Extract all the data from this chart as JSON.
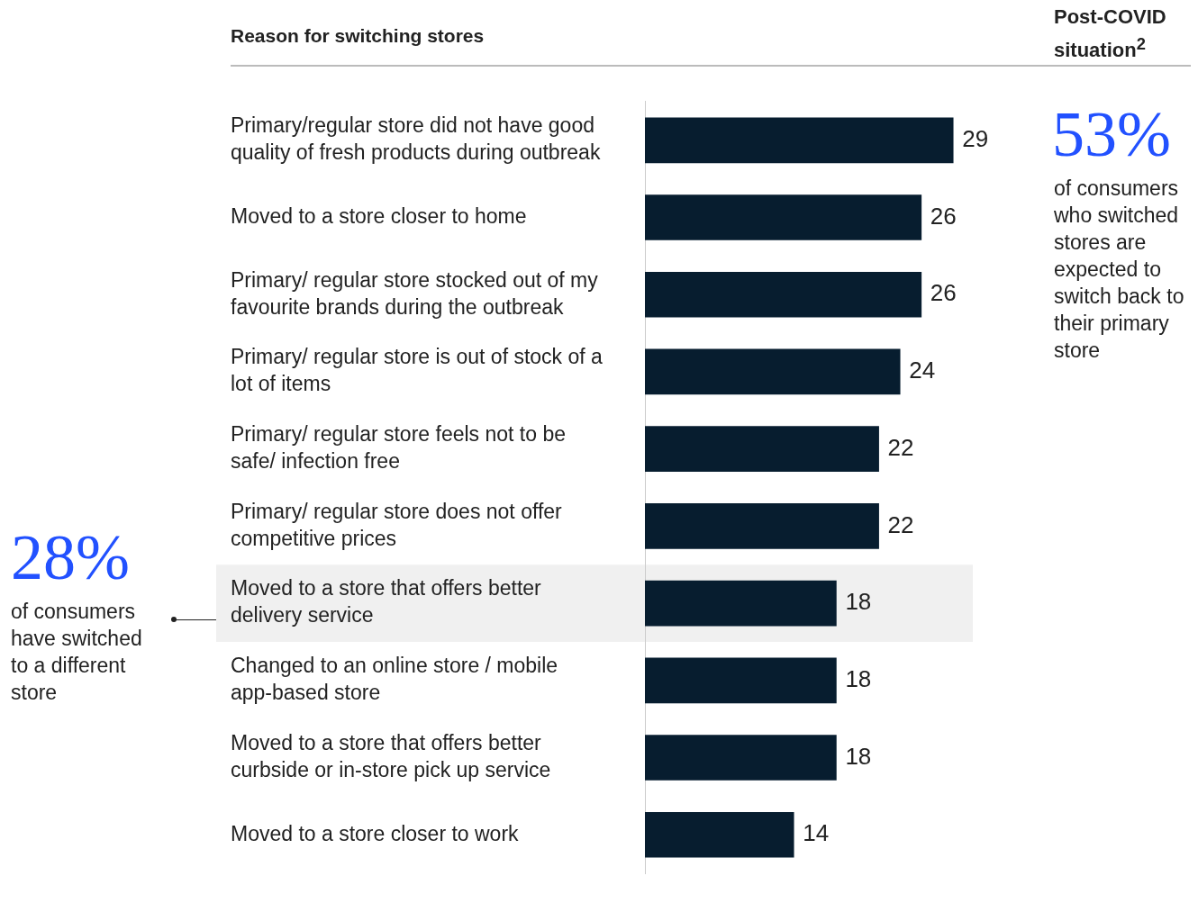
{
  "chart_data": {
    "type": "bar",
    "orientation": "horizontal",
    "title": "Reason for switching stores",
    "categories": [
      "Primary/regular store did not have good quality of fresh products during outbreak",
      "Moved to a store closer to home",
      "Primary/ regular store stocked out of my favourite brands during the outbreak",
      "Primary/ regular store is out of stock of a lot of items",
      "Primary/ regular store feels not to be safe/ infection free",
      "Primary/ regular store does not offer competitive prices",
      "Moved to a store that offers better delivery service",
      "Changed to an online store / mobile app-based store",
      "Moved to a store that offers better curbside or in-store pick up service",
      "Moved to a store closer to work"
    ],
    "values": [
      29,
      26,
      26,
      24,
      22,
      22,
      18,
      18,
      18,
      14
    ],
    "color": "#071d2f",
    "data_labels": true,
    "tick_labels": "y",
    "legend": false,
    "bands": [
      {
        "axis": "y",
        "from": "Moved to a store that offers better delivery service",
        "to": "Moved to a store that offers better delivery service",
        "color": "#f0f0f0"
      }
    ],
    "annotations": [
      "Post-COVID situation$^{2}$",
      "53%",
      "of consumers who switched stores are expected to switch back to their primary store",
      "28%",
      "of consumers have switched to a different store"
    ]
  }
}
